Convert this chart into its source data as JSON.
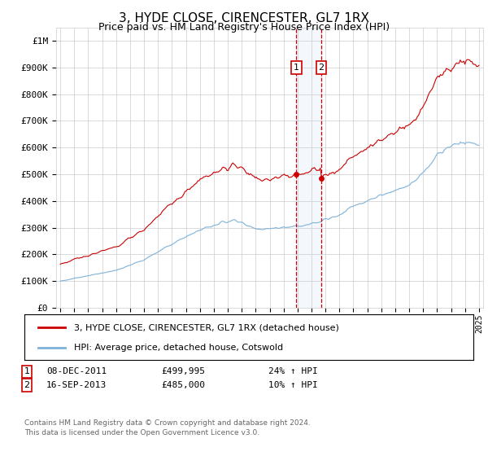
{
  "title": "3, HYDE CLOSE, CIRENCESTER, GL7 1RX",
  "subtitle": "Price paid vs. HM Land Registry's House Price Index (HPI)",
  "legend_line1": "3, HYDE CLOSE, CIRENCESTER, GL7 1RX (detached house)",
  "legend_line2": "HPI: Average price, detached house, Cotswold",
  "sale1_label": "1",
  "sale1_date": "08-DEC-2011",
  "sale1_price": "£499,995",
  "sale1_hpi": "24% ↑ HPI",
  "sale1_year": 2011.92,
  "sale1_value": 499995,
  "sale2_label": "2",
  "sale2_date": "16-SEP-2013",
  "sale2_price": "£485,000",
  "sale2_hpi": "10% ↑ HPI",
  "sale2_year": 2013.71,
  "sale2_value": 485000,
  "footnote1": "Contains HM Land Registry data © Crown copyright and database right 2024.",
  "footnote2": "This data is licensed under the Open Government Licence v3.0.",
  "red_color": "#cc0000",
  "blue_color": "#7fb2d8",
  "background_color": "#ffffff",
  "grid_color": "#cccccc",
  "ylim_max": 1050000,
  "xlim_start": 1994.7,
  "xlim_end": 2025.3
}
